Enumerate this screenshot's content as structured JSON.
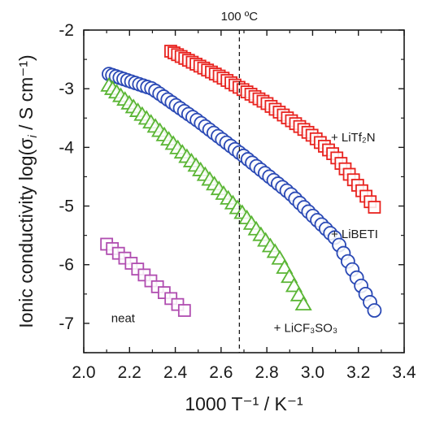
{
  "chart_data": {
    "type": "scatter",
    "xlabel": "1000 T⁻¹ / K⁻¹",
    "ylabel_prefix": "Ionic conductivity log(σ",
    "ylabel_sub": "i",
    "ylabel_suffix": " / S cm⁻¹)",
    "xlim": [
      2.0,
      3.4
    ],
    "ylim": [
      -7.5,
      -2.0
    ],
    "x_ticks": [
      2.0,
      2.2,
      2.4,
      2.6,
      2.8,
      3.0,
      3.2,
      3.4
    ],
    "y_ticks": [
      -2,
      -3,
      -4,
      -5,
      -6,
      -7
    ],
    "x_tick_labels": [
      "2.0",
      "2.2",
      "2.4",
      "2.6",
      "2.8",
      "3.0",
      "3.2",
      "3.4"
    ],
    "y_tick_labels": [
      "-2",
      "-3",
      "-4",
      "-5",
      "-6",
      "-7"
    ],
    "reference_line": {
      "x": 2.68,
      "label": "100 ºC",
      "style": "dashed"
    },
    "series": [
      {
        "name": "+ LiTf₂N",
        "marker": "square",
        "color": "#e8231f",
        "x_range": [
          2.38,
          3.27
        ],
        "y_at_x": [
          [
            2.38,
            -2.36
          ],
          [
            2.6,
            -2.8
          ],
          [
            2.8,
            -3.25
          ],
          [
            3.0,
            -3.8
          ],
          [
            3.1,
            -4.15
          ],
          [
            3.27,
            -5.02
          ]
        ],
        "label_anchor": {
          "x": 3.08,
          "y": -3.9
        }
      },
      {
        "name": "+ LiBETI",
        "marker": "circle",
        "color": "#2a49b5",
        "x_range": [
          2.11,
          3.27
        ],
        "y_at_x": [
          [
            2.11,
            -2.75
          ],
          [
            2.3,
            -3.0
          ],
          [
            2.5,
            -3.55
          ],
          [
            2.7,
            -4.15
          ],
          [
            2.9,
            -4.78
          ],
          [
            3.1,
            -5.55
          ],
          [
            3.27,
            -6.78
          ]
        ],
        "label_anchor": {
          "x": 3.08,
          "y": -5.55
        }
      },
      {
        "name": "+ LiCF₃SO₃",
        "marker": "triangle",
        "color": "#5ab534",
        "x_range": [
          2.11,
          2.96
        ],
        "y_at_x": [
          [
            2.11,
            -2.95
          ],
          [
            2.3,
            -3.6
          ],
          [
            2.5,
            -4.35
          ],
          [
            2.7,
            -5.15
          ],
          [
            2.85,
            -5.85
          ],
          [
            2.96,
            -6.68
          ]
        ],
        "label_anchor": {
          "x": 2.83,
          "y": -7.15
        }
      },
      {
        "name": "neat",
        "marker": "square",
        "color": "#b04db0",
        "x_range": [
          2.1,
          2.44
        ],
        "y_at_x": [
          [
            2.1,
            -5.65
          ],
          [
            2.2,
            -5.95
          ],
          [
            2.3,
            -6.3
          ],
          [
            2.44,
            -6.78
          ]
        ],
        "label_anchor": {
          "x": 2.12,
          "y": -6.98
        }
      }
    ]
  }
}
